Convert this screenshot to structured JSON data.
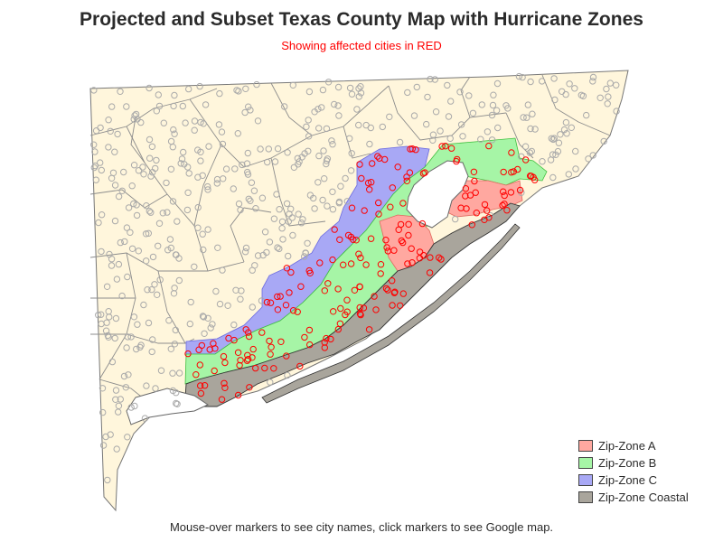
{
  "title": "Projected and Subset Texas County Map with Hurricane Zones",
  "subtitle": "Showing affected cities in RED",
  "footnote": "Mouse-over markers to see city names, click markers to see Google map.",
  "legend": [
    {
      "label": "Zip-Zone A",
      "color": "#ffa8a0"
    },
    {
      "label": "Zip-Zone B",
      "color": "#a6f5a6"
    },
    {
      "label": "Zip-Zone C",
      "color": "#a8a8f5"
    },
    {
      "label": "Zip-Zone Coastal",
      "color": "#a9a59c"
    }
  ],
  "colors": {
    "land": "#fff6dc",
    "county_border": "#8a8a8a",
    "unaffected_city": "#aaaaaa",
    "affected_city": "#ff0000"
  }
}
